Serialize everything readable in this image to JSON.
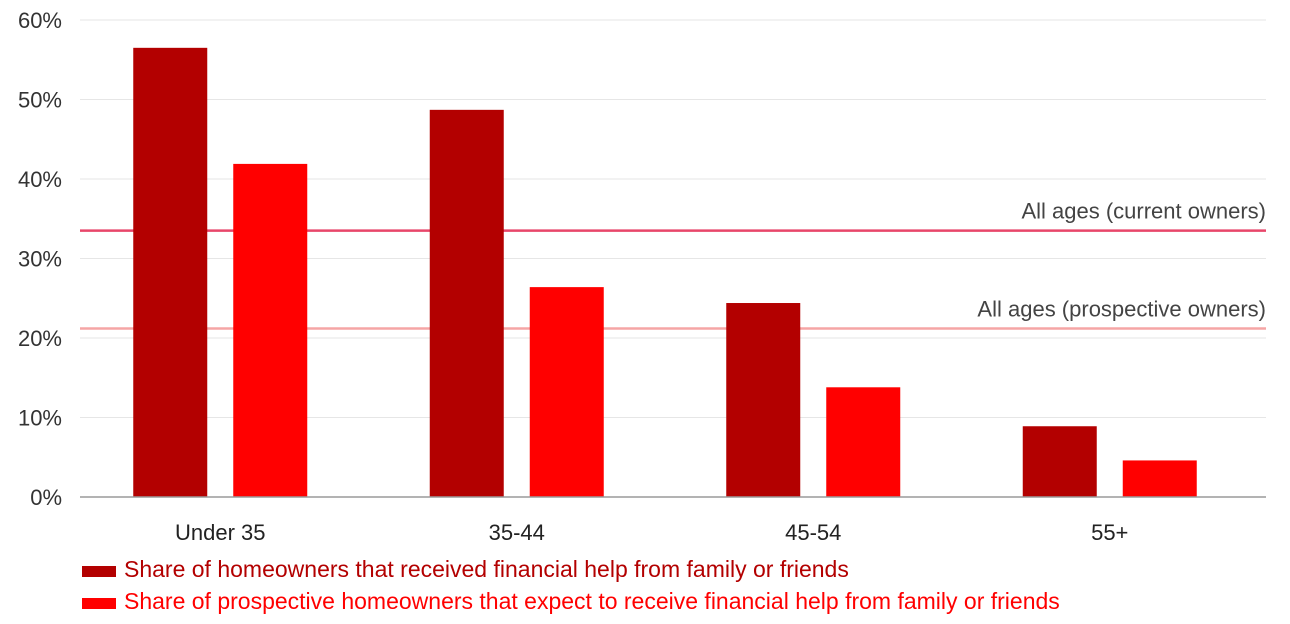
{
  "chart_data": {
    "type": "bar",
    "categories": [
      "Under 35",
      "35-44",
      "45-54",
      "55+"
    ],
    "series": [
      {
        "name": "Share of homeowners that received financial help from family or friends",
        "values": [
          56.5,
          48.7,
          24.4,
          8.9
        ],
        "color": "#b30000"
      },
      {
        "name": "Share of prospective homeowners that expect to receive financial help from family or friends",
        "values": [
          41.9,
          26.4,
          13.8,
          4.6
        ],
        "color": "#ff0000"
      }
    ],
    "y_ticks": [
      {
        "value": 0,
        "label": "0%"
      },
      {
        "value": 10,
        "label": "10%"
      },
      {
        "value": 20,
        "label": "20%"
      },
      {
        "value": 30,
        "label": "30%"
      },
      {
        "value": 40,
        "label": "40%"
      },
      {
        "value": 50,
        "label": "50%"
      },
      {
        "value": 60,
        "label": "60%"
      }
    ],
    "ylim": [
      0,
      60
    ],
    "grid": true,
    "reference_lines": [
      {
        "label": "All ages (current owners)",
        "value": 33.5,
        "color": "#e8466a"
      },
      {
        "label": "All ages (prospective owners)",
        "value": 21.2,
        "color": "#f5a5a5"
      }
    ],
    "legend_position": "bottom-left",
    "title": "",
    "xlabel": "",
    "ylabel": ""
  }
}
